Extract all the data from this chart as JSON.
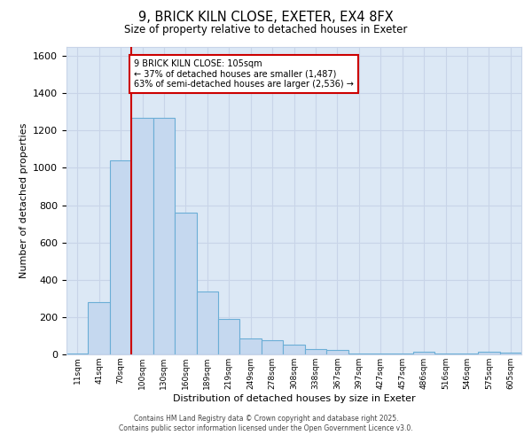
{
  "title_line1": "9, BRICK KILN CLOSE, EXETER, EX4 8FX",
  "title_line2": "Size of property relative to detached houses in Exeter",
  "xlabel": "Distribution of detached houses by size in Exeter",
  "ylabel": "Number of detached properties",
  "categories": [
    "11sqm",
    "41sqm",
    "70sqm",
    "100sqm",
    "130sqm",
    "160sqm",
    "189sqm",
    "219sqm",
    "249sqm",
    "278sqm",
    "308sqm",
    "338sqm",
    "367sqm",
    "397sqm",
    "427sqm",
    "457sqm",
    "486sqm",
    "516sqm",
    "546sqm",
    "575sqm",
    "605sqm"
  ],
  "values": [
    5,
    278,
    1040,
    1270,
    1270,
    760,
    335,
    190,
    85,
    75,
    50,
    30,
    22,
    5,
    5,
    5,
    15,
    5,
    5,
    15,
    10
  ],
  "bar_color": "#c5d8ef",
  "bar_edge_color": "#6baed6",
  "red_line_x": 2.5,
  "annotation_text": "9 BRICK KILN CLOSE: 105sqm\n← 37% of detached houses are smaller (1,487)\n63% of semi-detached houses are larger (2,536) →",
  "annotation_box_color": "#ffffff",
  "annotation_box_edge_color": "#cc0000",
  "ylim": [
    0,
    1650
  ],
  "yticks": [
    0,
    200,
    400,
    600,
    800,
    1000,
    1200,
    1400,
    1600
  ],
  "grid_color": "#c8d4e8",
  "background_color": "#dce8f5",
  "footer_line1": "Contains HM Land Registry data © Crown copyright and database right 2025.",
  "footer_line2": "Contains public sector information licensed under the Open Government Licence v3.0."
}
